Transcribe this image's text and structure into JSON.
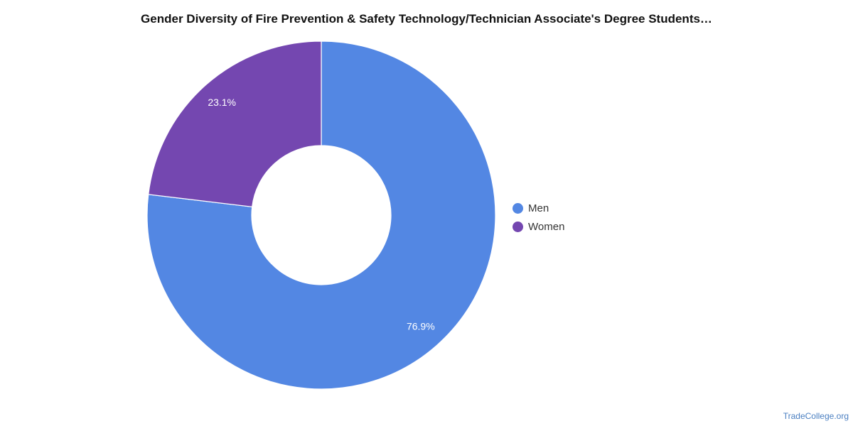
{
  "chart_data": {
    "type": "pie",
    "variant": "donut",
    "title": "Gender Diversity of Fire Prevention & Safety Technology/Technician Associate's Degree Students…",
    "categories": [
      "Men",
      "Women"
    ],
    "values": [
      76.9,
      23.1
    ],
    "value_labels": [
      "76.9%",
      "23.1%"
    ],
    "colors": [
      "#5387e3",
      "#7447b0"
    ],
    "legend_position": "right"
  },
  "footer": {
    "credit": "TradeCollege.org"
  }
}
